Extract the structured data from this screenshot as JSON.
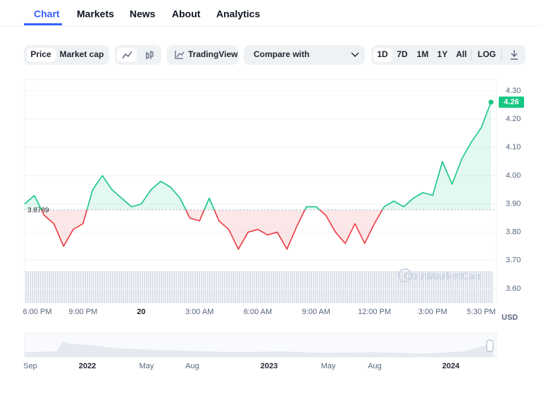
{
  "tabs": [
    "Chart",
    "Markets",
    "News",
    "About",
    "Analytics"
  ],
  "toolbar": {
    "type_buttons": [
      "Price",
      "Market cap"
    ],
    "tradingview": "TradingView",
    "compare": "Compare with",
    "ranges": [
      "1D",
      "7D",
      "1M",
      "1Y",
      "All",
      "LOG"
    ]
  },
  "chart_data": {
    "type": "line",
    "categories": [
      "6:00 PM",
      null,
      null,
      null,
      null,
      null,
      "9:00 PM",
      null,
      null,
      null,
      null,
      null,
      "20",
      null,
      null,
      null,
      null,
      null,
      "3:00 AM",
      null,
      null,
      null,
      null,
      null,
      "6:00 AM",
      null,
      null,
      null,
      null,
      null,
      "9:00 AM",
      null,
      null,
      null,
      null,
      null,
      "12:00 PM",
      null,
      null,
      null,
      null,
      null,
      "3:00 PM",
      null,
      null,
      null,
      null,
      "5:30 PM",
      null
    ],
    "values": [
      3.9,
      3.93,
      3.86,
      3.83,
      3.75,
      3.81,
      3.83,
      3.95,
      4.0,
      3.95,
      3.92,
      3.89,
      3.9,
      3.95,
      3.98,
      3.96,
      3.92,
      3.85,
      3.84,
      3.92,
      3.84,
      3.81,
      3.74,
      3.8,
      3.81,
      3.79,
      3.8,
      3.74,
      3.82,
      3.89,
      3.89,
      3.86,
      3.8,
      3.76,
      3.83,
      3.76,
      3.83,
      3.89,
      3.91,
      3.89,
      3.92,
      3.94,
      3.93,
      4.05,
      3.97,
      4.06,
      4.12,
      4.17,
      4.26
    ],
    "baseline": 3.8789,
    "current_label": "4.26",
    "ylim": [
      3.55,
      4.34
    ],
    "yticks": [
      {
        "value": 3.6,
        "label": "3.60"
      },
      {
        "value": 3.7,
        "label": "3.70"
      },
      {
        "value": 3.8,
        "label": "3.80"
      },
      {
        "value": 3.9,
        "label": "3.90"
      },
      {
        "value": 4.0,
        "label": "4.00"
      },
      {
        "value": 4.1,
        "label": "4.10"
      },
      {
        "value": 4.2,
        "label": "4.20"
      },
      {
        "value": 4.3,
        "label": "4.30"
      }
    ],
    "y_axis_label": "USD",
    "up_color": "#16c784",
    "down_color": "#ea3943",
    "grid": true
  },
  "watermark": "CoinMarketCap",
  "navigator": {
    "labels": [
      "Sep",
      "2022",
      "May",
      "Aug",
      "2023",
      "May",
      "Aug",
      "2024"
    ]
  }
}
